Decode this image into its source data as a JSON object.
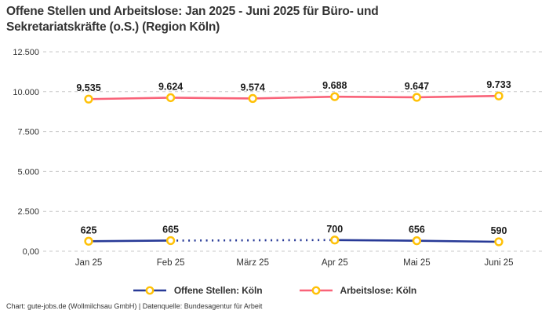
{
  "title_lines": [
    "Offene Stellen und Arbeitslose: Jan 2025 - Juni 2025 für Büro- und",
    "Sekretariatskräfte (o.S.) (Region Köln)"
  ],
  "footer": "Chart: gute-jobs.de (Wollmilchsau GmbH) | Datenquelle: Bundesagentur für Arbeit",
  "colors": {
    "offene": "#283a97",
    "arbeitslose": "#f96379",
    "marker": "#ffc107",
    "marker_fill": "#ffffff",
    "grid": "#c9c9c9",
    "axis_text": "#333333",
    "point_label": "#1a1a1a",
    "background": "#ffffff"
  },
  "chart_data": {
    "type": "line",
    "categories": [
      "Jan 25",
      "Feb 25",
      "März 25",
      "Apr 25",
      "Mai 25",
      "Juni 25"
    ],
    "series": [
      {
        "name": "Offene Stellen: Köln",
        "color_key": "offene",
        "values": [
          625,
          665,
          null,
          700,
          656,
          590
        ],
        "gap_style": "dotted"
      },
      {
        "name": "Arbeitslose: Köln",
        "color_key": "arbeitslose",
        "values": [
          9535,
          9624,
          9574,
          9688,
          9647,
          9733
        ],
        "gap_style": "dotted"
      }
    ],
    "y_ticks": [
      {
        "value": 12500,
        "label": "12.500"
      },
      {
        "value": 10000,
        "label": "10.000"
      },
      {
        "value": 7500,
        "label": "7.500"
      },
      {
        "value": 5000,
        "label": "5.000"
      },
      {
        "value": 2500,
        "label": "2.500"
      },
      {
        "value": 0,
        "label": "0,00"
      }
    ],
    "ylim": [
      0,
      12500
    ],
    "grid": "dashed-horizontal",
    "legend_position": "bottom",
    "point_labels_visible": true
  }
}
